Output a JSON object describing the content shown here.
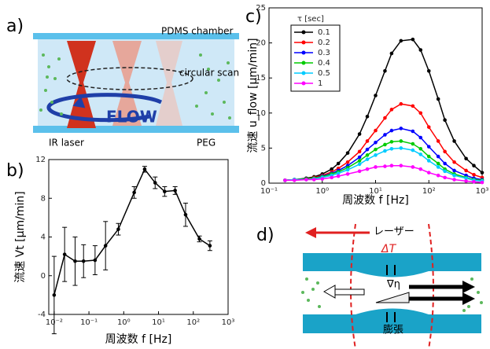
{
  "panel_labels": [
    "a)",
    "b)",
    "c)",
    "d)"
  ],
  "diagram_a": {
    "chamber": "PDMS chamber",
    "scan": "circular scan",
    "flow": "FLOW",
    "laser": "IR laser",
    "peg": "PEG"
  },
  "diagram_d": {
    "laser": "レーザー",
    "delta_t": "ΔT",
    "grad_eta": "∇η",
    "expansion": "膨張"
  },
  "chart_data": [
    {
      "type": "errorbar",
      "xlabel": "周波数 f [Hz]",
      "ylabel": "流速 Vt [μm/min]",
      "log_x": true,
      "x": [
        0.01,
        0.02,
        0.04,
        0.07,
        0.15,
        0.3,
        0.7,
        2,
        4,
        8,
        15,
        30,
        60,
        150,
        300
      ],
      "values": [
        -2,
        2.2,
        1.5,
        1.5,
        1.6,
        3.1,
        4.8,
        8.6,
        11,
        9.6,
        8.7,
        8.8,
        6.3,
        3.8,
        3.1
      ],
      "errors": [
        4,
        2.8,
        2.5,
        1.7,
        1.5,
        2.5,
        0.6,
        0.6,
        0.3,
        0.6,
        0.5,
        0.4,
        1.2,
        0.3,
        0.5
      ],
      "color": "#000000",
      "xlim": [
        0.007,
        1000
      ],
      "ylim": [
        -4,
        12
      ],
      "xticks": [
        {
          "value": 0.01,
          "label": "10⁻²"
        },
        {
          "value": 0.1,
          "label": "10⁻¹"
        },
        {
          "value": 1,
          "label": "10⁰"
        },
        {
          "value": 10,
          "label": "10¹"
        },
        {
          "value": 100,
          "label": "10²"
        },
        {
          "value": 1000,
          "label": "10³"
        }
      ],
      "yticks": [
        -4,
        0,
        4,
        8,
        12
      ]
    },
    {
      "type": "line",
      "xlabel": "周波数 f [Hz]",
      "ylabel": "流速 u_flow [μm/min]",
      "log_x": true,
      "legend_title": "τ [sec]",
      "x": [
        0.2,
        0.3,
        0.5,
        0.7,
        1,
        1.5,
        2,
        3,
        5,
        7,
        10,
        15,
        20,
        30,
        50,
        70,
        100,
        150,
        200,
        300,
        500,
        700,
        1000
      ],
      "series": [
        {
          "name": "0.1",
          "color": "#000000",
          "values": [
            0.4,
            0.5,
            0.7,
            0.9,
            1.3,
            2,
            2.8,
            4.3,
            7,
            9.5,
            12.5,
            16,
            18.5,
            20.3,
            20.5,
            19,
            16,
            12,
            9,
            6,
            3.5,
            2.5,
            1.5
          ]
        },
        {
          "name": "0.2",
          "color": "#ff0000",
          "values": [
            0.4,
            0.5,
            0.6,
            0.8,
            1.1,
            1.6,
            2.1,
            3,
            4.5,
            6,
            7.5,
            9.3,
            10.5,
            11.3,
            11,
            10,
            8,
            6,
            4.5,
            3,
            1.8,
            1.2,
            0.8
          ]
        },
        {
          "name": "0.3",
          "color": "#0000ff",
          "values": [
            0.4,
            0.5,
            0.6,
            0.7,
            1,
            1.4,
            1.8,
            2.5,
            3.7,
            4.8,
            5.8,
            6.9,
            7.5,
            7.8,
            7.4,
            6.5,
            5.2,
            3.8,
            2.8,
            1.8,
            1.1,
            0.7,
            0.5
          ]
        },
        {
          "name": "0.4",
          "color": "#00cc00",
          "values": [
            0.4,
            0.5,
            0.6,
            0.7,
            0.9,
            1.3,
            1.6,
            2.2,
            3.2,
            4,
            4.8,
            5.5,
            5.9,
            6,
            5.6,
            4.9,
            3.8,
            2.8,
            2,
            1.3,
            0.8,
            0.5,
            0.4
          ]
        },
        {
          "name": "0.5",
          "color": "#00ccff",
          "values": [
            0.4,
            0.5,
            0.5,
            0.6,
            0.8,
            1.1,
            1.4,
            1.9,
            2.7,
            3.4,
            4,
            4.6,
            4.9,
            5,
            4.7,
            4.1,
            3.2,
            2.3,
            1.7,
            1.1,
            0.7,
            0.4,
            0.3
          ]
        },
        {
          "name": "1",
          "color": "#ff00ff",
          "values": [
            0.4,
            0.4,
            0.5,
            0.5,
            0.6,
            0.8,
            1,
            1.3,
            1.7,
            2,
            2.3,
            2.4,
            2.5,
            2.5,
            2.3,
            2,
            1.5,
            1.1,
            0.8,
            0.5,
            0.3,
            0.2,
            0.1
          ]
        }
      ],
      "xlim": [
        0.1,
        1000
      ],
      "ylim": [
        0,
        25
      ],
      "xticks": [
        {
          "value": 0.1,
          "label": "10⁻¹"
        },
        {
          "value": 1,
          "label": "10⁰"
        },
        {
          "value": 10,
          "label": "10¹"
        },
        {
          "value": 100,
          "label": "10²"
        },
        {
          "value": 1000,
          "label": "10³"
        }
      ],
      "yticks": [
        0,
        5,
        10,
        15,
        20,
        25
      ]
    }
  ]
}
